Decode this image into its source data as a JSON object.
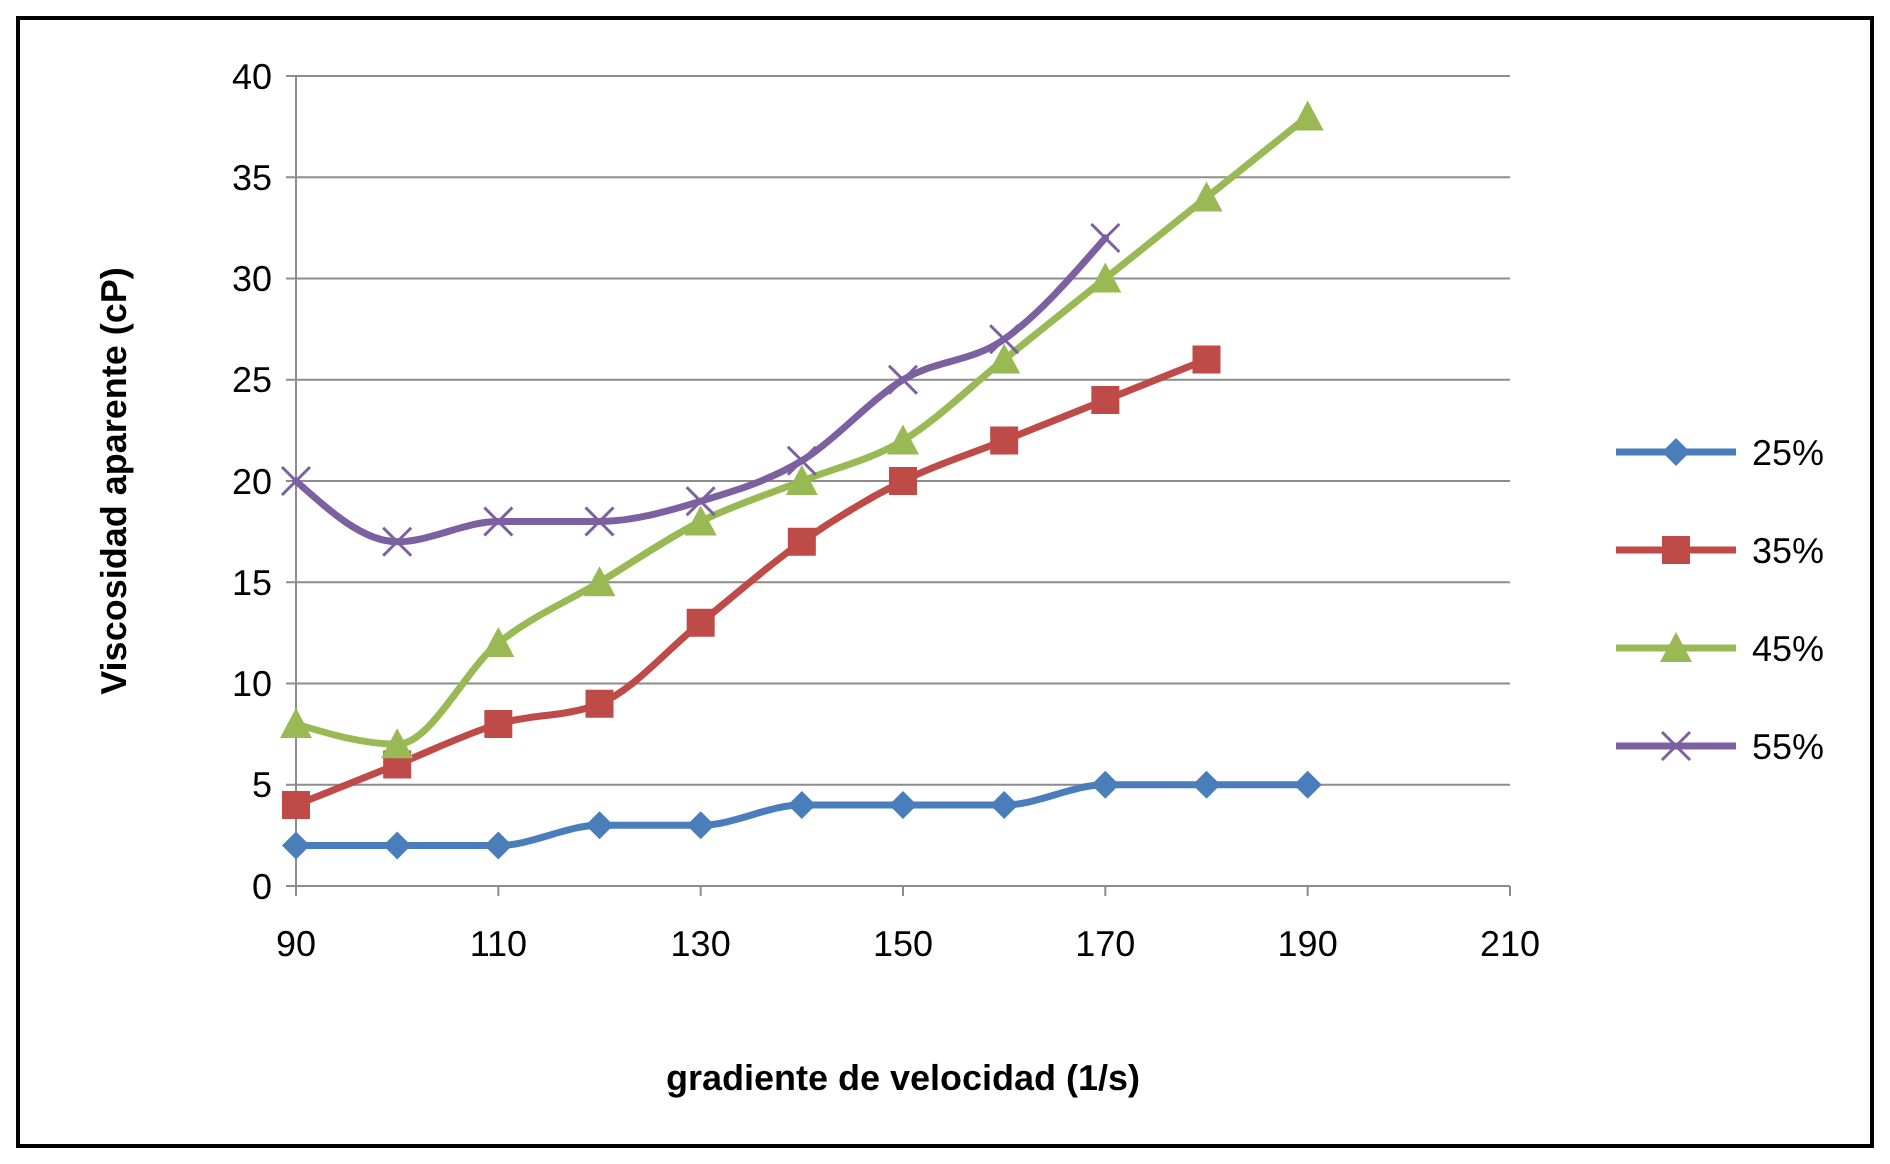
{
  "chart_data": {
    "type": "line",
    "xlabel": "gradiente de velocidad (1/s)",
    "ylabel": "Viscosidad aparente (cP)",
    "x": [
      90,
      100,
      110,
      120,
      130,
      140,
      150,
      160,
      170,
      180,
      190
    ],
    "xlim": [
      90,
      210
    ],
    "xticks": [
      90,
      110,
      130,
      150,
      170,
      190,
      210
    ],
    "ylim": [
      0,
      40
    ],
    "yticks": [
      0,
      5,
      10,
      15,
      20,
      25,
      30,
      35,
      40
    ],
    "grid": "y",
    "legend": "right",
    "line_style": "solid",
    "series": [
      {
        "name": "25%",
        "color": "#4a7ebb",
        "marker": "diamond",
        "values": [
          2,
          2,
          2,
          3,
          3,
          4,
          4,
          4,
          5,
          5,
          5
        ]
      },
      {
        "name": "35%",
        "color": "#be4b48",
        "marker": "square",
        "values": [
          4,
          6,
          8,
          9,
          13,
          17,
          20,
          22,
          24,
          26,
          null
        ]
      },
      {
        "name": "45%",
        "color": "#98b954",
        "marker": "triangle",
        "values": [
          8,
          7,
          12,
          15,
          18,
          20,
          22,
          26,
          30,
          34,
          38
        ]
      },
      {
        "name": "55%",
        "color": "#7d60a0",
        "marker": "cross",
        "values": [
          20,
          17,
          18,
          18,
          19,
          21,
          25,
          27,
          32,
          null,
          null
        ]
      }
    ]
  }
}
